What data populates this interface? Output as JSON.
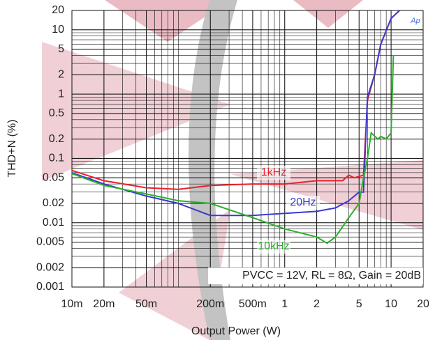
{
  "chart_data": {
    "type": "line",
    "xlabel": "Output Power (W)",
    "ylabel": "THD+N (%)",
    "annotation": "PVCC = 12V, RL = 8Ω, Gain = 20dB",
    "logo": "Ap",
    "xscale": "log",
    "yscale": "log",
    "grid": true,
    "xlim": [
      0.01,
      20
    ],
    "ylim": [
      0.001,
      20
    ],
    "xticks": [
      {
        "value": 0.01,
        "label": "10m"
      },
      {
        "value": 0.02,
        "label": "20m"
      },
      {
        "value": 0.05,
        "label": "50m"
      },
      {
        "value": 0.2,
        "label": "200m"
      },
      {
        "value": 0.5,
        "label": "500m"
      },
      1,
      2,
      5,
      10,
      20
    ],
    "yticks": [
      20,
      10,
      5,
      2,
      1,
      0.5,
      0.2,
      0.1,
      0.05,
      0.02,
      0.01,
      0.005,
      0.002,
      0.001
    ],
    "series": [
      {
        "name": "1kHz",
        "color": "#e8202a",
        "x": [
          0.01,
          0.02,
          0.05,
          0.1,
          0.2,
          0.5,
          1,
          2,
          3.5,
          4,
          4.5,
          5.5,
          6,
          7,
          8,
          10,
          12
        ],
        "values": [
          0.065,
          0.045,
          0.035,
          0.033,
          0.038,
          0.04,
          0.04,
          0.045,
          0.045,
          0.055,
          0.05,
          0.055,
          0.8,
          2,
          6,
          15,
          20
        ]
      },
      {
        "name": "20Hz",
        "color": "#3a3ad0",
        "x": [
          0.01,
          0.02,
          0.05,
          0.1,
          0.2,
          0.5,
          1,
          2,
          3,
          4,
          5,
          5.5,
          6,
          7,
          8,
          10,
          12
        ],
        "values": [
          0.06,
          0.04,
          0.026,
          0.02,
          0.013,
          0.013,
          0.014,
          0.015,
          0.017,
          0.022,
          0.03,
          0.03,
          0.9,
          2,
          6,
          15,
          20
        ]
      },
      {
        "name": "10kHz",
        "color": "#2ab02a",
        "x": [
          0.01,
          0.02,
          0.05,
          0.1,
          0.2,
          0.5,
          1,
          2,
          2.5,
          3,
          4,
          5,
          5.5,
          6,
          6.5,
          7.5,
          8,
          9,
          10,
          10.5
        ],
        "values": [
          0.058,
          0.038,
          0.028,
          0.022,
          0.02,
          0.012,
          0.008,
          0.006,
          0.0048,
          0.006,
          0.012,
          0.02,
          0.05,
          0.1,
          0.25,
          0.2,
          0.22,
          0.2,
          0.25,
          4
        ]
      }
    ]
  }
}
